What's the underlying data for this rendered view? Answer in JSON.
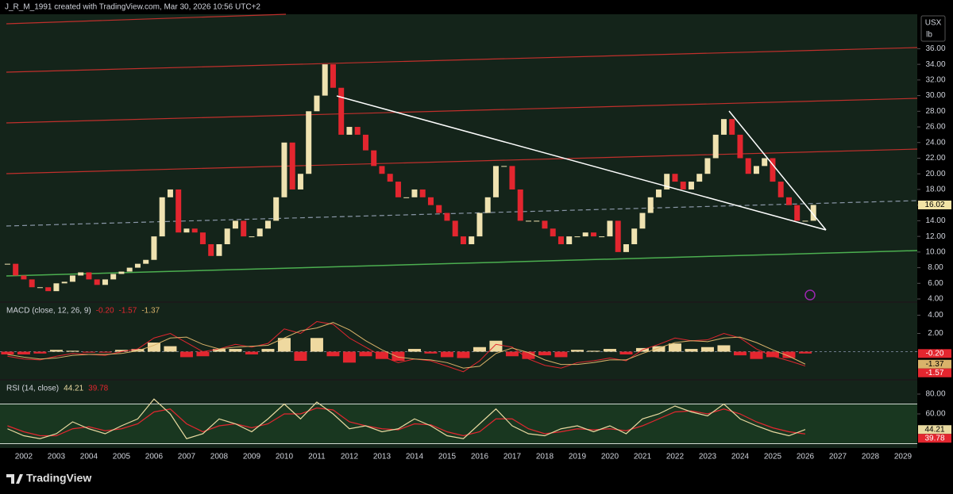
{
  "header": "J_R_M_1991 created with TradingView.com, Mar 30, 2026 10:56 UTC+2",
  "currency": "USX",
  "unit": "lb",
  "brand": "TradingView",
  "chart_data": [
    {
      "type": "candlestick",
      "x": [
        2001.5,
        2001.75,
        2002,
        2002.25,
        2002.5,
        2002.75,
        2003,
        2003.25,
        2003.5,
        2003.75,
        2004,
        2004.25,
        2004.5,
        2004.75,
        2005,
        2005.25,
        2005.5,
        2005.75,
        2006,
        2006.25,
        2006.5,
        2006.75,
        2007,
        2007.25,
        2007.5,
        2007.75,
        2008,
        2008.25,
        2008.5,
        2008.75,
        2009,
        2009.25,
        2009.5,
        2009.75,
        2010,
        2010.25,
        2010.5,
        2010.75,
        2011,
        2011.25,
        2011.5,
        2011.75,
        2012,
        2012.25,
        2012.5,
        2012.75,
        2013,
        2013.25,
        2013.5,
        2013.75,
        2014,
        2014.25,
        2014.5,
        2014.75,
        2015,
        2015.25,
        2015.5,
        2015.75,
        2016,
        2016.25,
        2016.5,
        2016.75,
        2017,
        2017.25,
        2017.5,
        2017.75,
        2018,
        2018.25,
        2018.5,
        2018.75,
        2019,
        2019.25,
        2019.5,
        2019.75,
        2020,
        2020.25,
        2020.5,
        2020.75,
        2021,
        2021.25,
        2021.5,
        2021.75,
        2022,
        2022.25,
        2022.5,
        2022.75,
        2023,
        2023.25,
        2023.5,
        2023.75,
        2024,
        2024.25,
        2024.5,
        2024.75,
        2025,
        2025.25,
        2025.5,
        2025.75,
        2026,
        2026.25
      ],
      "values": [
        8.5,
        7,
        6.5,
        5.5,
        5.5,
        5,
        6,
        6.2,
        7,
        7.4,
        6.5,
        5.8,
        6.5,
        7.2,
        7.5,
        8,
        8.5,
        9,
        12,
        17,
        18,
        12.5,
        13,
        12.5,
        11,
        9.5,
        11,
        13,
        14,
        12,
        12,
        13,
        14,
        17,
        24,
        18,
        20,
        28,
        30,
        34,
        31,
        25,
        26,
        25,
        23,
        21,
        20,
        19,
        17,
        17,
        18,
        17,
        16,
        15,
        14,
        12,
        11,
        12,
        15,
        17,
        21,
        21,
        18,
        14,
        14,
        14,
        13,
        12,
        11,
        12,
        12,
        12.5,
        12,
        12,
        14,
        10,
        11,
        13,
        15,
        17,
        18,
        20,
        19,
        18,
        19,
        20,
        22,
        25,
        27,
        25,
        22,
        20,
        21,
        22,
        19,
        17,
        16,
        14,
        14,
        16.02
      ],
      "up_color": "#efe2b0",
      "down_color": "#e3262f",
      "xlim": [
        2001.27,
        2029.44
      ],
      "xticks": [
        2002,
        2003,
        2004,
        2005,
        2006,
        2007,
        2008,
        2009,
        2010,
        2011,
        2012,
        2013,
        2014,
        2015,
        2016,
        2017,
        2018,
        2019,
        2020,
        2021,
        2022,
        2023,
        2024,
        2025,
        2026,
        2027,
        2028,
        2029
      ],
      "ylim": [
        3.7,
        40.4
      ],
      "yticks": [
        {
          "value": 4,
          "label": "4.00"
        },
        {
          "value": 6,
          "label": "6.00"
        },
        {
          "value": 8,
          "label": "8.00"
        },
        {
          "value": 10,
          "label": "10.00"
        },
        {
          "value": 12,
          "label": "12.00"
        },
        {
          "value": 14,
          "label": "14.00"
        },
        {
          "value": 16,
          "label": "16.00"
        },
        {
          "value": 18,
          "label": "18.00"
        },
        {
          "value": 20,
          "label": "20.00"
        },
        {
          "value": 22,
          "label": "22.00"
        },
        {
          "value": 24,
          "label": "24.00"
        },
        {
          "value": 26,
          "label": "26.00"
        },
        {
          "value": 28,
          "label": "28.00"
        },
        {
          "value": 30,
          "label": "30.00"
        },
        {
          "value": 32,
          "label": "32.00"
        },
        {
          "value": 34,
          "label": "34.00"
        },
        {
          "value": 36,
          "label": "36.00"
        }
      ]
    },
    {
      "type": "macd",
      "title": "MACD (close, 12, 26, 9)",
      "x": [
        2001.5,
        2002,
        2002.5,
        2003,
        2003.5,
        2004,
        2004.5,
        2005,
        2005.5,
        2006,
        2006.5,
        2007,
        2007.5,
        2008,
        2008.5,
        2009,
        2009.5,
        2010,
        2010.5,
        2011,
        2011.5,
        2012,
        2012.5,
        2013,
        2013.5,
        2014,
        2014.5,
        2015,
        2015.5,
        2016,
        2016.5,
        2017,
        2017.5,
        2018,
        2018.5,
        2019,
        2019.5,
        2020,
        2020.5,
        2021,
        2021.5,
        2022,
        2022.5,
        2023,
        2023.5,
        2024,
        2024.5,
        2025,
        2025.5,
        2026
      ],
      "series": [
        {
          "color": "#efd9a0",
          "negative_color": "#e3262f",
          "values": [
            -0.3,
            -0.3,
            -0.2,
            0.2,
            0.1,
            -0.1,
            -0.1,
            0.2,
            0.3,
            1.0,
            0.6,
            -0.6,
            -0.5,
            0.3,
            0.3,
            -0.3,
            0.3,
            1.5,
            -1.0,
            1.5,
            -0.5,
            -1.2,
            -0.5,
            -0.8,
            -1.0,
            0.3,
            -0.2,
            -0.6,
            -0.7,
            0.5,
            1.2,
            -0.5,
            -0.8,
            -0.4,
            -0.6,
            0.2,
            0.1,
            0.3,
            -0.3,
            0.4,
            0.6,
            0.9,
            0.3,
            0.5,
            0.7,
            -0.4,
            -0.8,
            -0.6,
            -0.7,
            -0.2
          ],
          "value_labels": [
            null,
            null,
            null,
            null,
            null,
            null,
            null,
            null,
            null,
            null,
            null,
            null,
            null,
            null,
            null,
            null,
            null,
            null,
            null,
            null,
            null,
            null,
            null,
            null,
            null,
            null,
            null,
            null,
            null,
            null,
            null,
            null,
            null,
            null,
            null,
            null,
            null,
            null,
            null,
            null,
            null,
            null,
            null,
            null,
            null,
            null,
            null,
            null,
            null,
            "-0.20"
          ]
        },
        {
          "color": "#e3262f",
          "values": [
            -0.5,
            -0.8,
            -0.9,
            -0.5,
            -0.2,
            -0.3,
            -0.4,
            0,
            0.3,
            1.5,
            2.0,
            1.0,
            0,
            0.3,
            0.8,
            0.5,
            0.9,
            2.5,
            2.0,
            3.3,
            3.0,
            1.5,
            0.5,
            -0.5,
            -1.2,
            -0.8,
            -1.0,
            -1.6,
            -2.2,
            -1.0,
            0.8,
            0.5,
            -0.8,
            -1.5,
            -1.8,
            -1.2,
            -1.0,
            -0.7,
            -1.0,
            0.2,
            0.8,
            1.5,
            1.2,
            1.3,
            2.0,
            1.5,
            0.3,
            -0.5,
            -1.0,
            -1.57
          ]
        },
        {
          "color": "#d9b36a",
          "values": [
            -0.3,
            -0.6,
            -0.8,
            -0.7,
            -0.4,
            -0.3,
            -0.3,
            -0.2,
            0.1,
            0.7,
            1.5,
            1.6,
            0.8,
            0.3,
            0.5,
            0.6,
            0.7,
            1.5,
            2.3,
            2.6,
            3.2,
            2.4,
            1.2,
            0.2,
            -0.6,
            -0.8,
            -0.9,
            -1.2,
            -1.8,
            -1.6,
            -0.2,
            0.4,
            -0.1,
            -0.9,
            -1.4,
            -1.4,
            -1.2,
            -0.9,
            -0.9,
            -0.2,
            0.4,
            1.0,
            1.2,
            1.1,
            1.5,
            1.6,
            1.0,
            0.2,
            -0.5,
            -1.37
          ]
        }
      ],
      "ylim": [
        -3,
        5.35
      ],
      "yticks": [
        {
          "value": 2,
          "label": "2.00"
        },
        {
          "value": 4,
          "label": "4.00"
        }
      ]
    },
    {
      "type": "rsi",
      "title": "RSI (14, close)",
      "x": [
        2001.5,
        2002,
        2002.5,
        2003,
        2003.5,
        2004,
        2004.5,
        2005,
        2005.5,
        2006,
        2006.5,
        2007,
        2007.5,
        2008,
        2008.5,
        2009,
        2009.5,
        2010,
        2010.5,
        2011,
        2011.5,
        2012,
        2012.5,
        2013,
        2013.5,
        2014,
        2014.5,
        2015,
        2015.5,
        2016,
        2016.5,
        2017,
        2017.5,
        2018,
        2018.5,
        2019,
        2019.5,
        2020,
        2020.5,
        2021,
        2021.5,
        2022,
        2022.5,
        2023,
        2023.5,
        2024,
        2024.5,
        2025,
        2025.5,
        2026
      ],
      "series": [
        {
          "color": "#e8d9a0",
          "values": [
            45,
            38,
            35,
            40,
            52,
            45,
            40,
            48,
            55,
            75,
            60,
            35,
            40,
            55,
            50,
            42,
            55,
            70,
            55,
            72,
            60,
            45,
            48,
            42,
            45,
            55,
            48,
            38,
            35,
            50,
            65,
            48,
            40,
            38,
            45,
            48,
            42,
            48,
            40,
            55,
            60,
            68,
            62,
            58,
            70,
            55,
            48,
            42,
            38,
            44.21
          ]
        },
        {
          "color": "#e3262f",
          "values": [
            48,
            42,
            38,
            38,
            45,
            47,
            43,
            45,
            50,
            62,
            65,
            50,
            42,
            48,
            50,
            46,
            50,
            60,
            60,
            66,
            64,
            52,
            48,
            45,
            44,
            50,
            49,
            42,
            38,
            42,
            55,
            55,
            45,
            40,
            42,
            45,
            44,
            45,
            43,
            48,
            55,
            62,
            63,
            60,
            65,
            60,
            52,
            46,
            42,
            39.78
          ]
        }
      ],
      "bands": [
        70,
        30
      ],
      "ylim": [
        25.6,
        93.6
      ],
      "yticks": [
        {
          "value": 60,
          "label": "60.00"
        },
        {
          "value": 80,
          "label": "80.00"
        }
      ]
    }
  ]
}
